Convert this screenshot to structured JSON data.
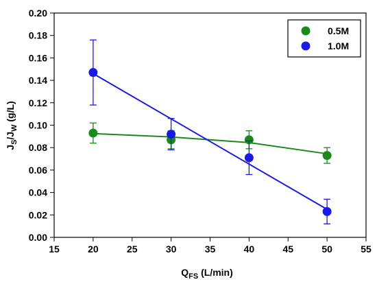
{
  "chart_data": {
    "type": "scatter",
    "xlabel": {
      "main": "Q",
      "sub": "FS",
      "rest": " (L/min)"
    },
    "ylabel": {
      "j1": "J",
      "s1": "S",
      "slash": "/J",
      "s2": "W",
      "rest": " (g/L)"
    },
    "xlim": [
      15,
      55
    ],
    "ylim": [
      0,
      0.2
    ],
    "xticks": [
      "15",
      "20",
      "25",
      "30",
      "35",
      "40",
      "45",
      "50",
      "55"
    ],
    "yticks": [
      "0.00",
      "0.02",
      "0.04",
      "0.06",
      "0.08",
      "0.10",
      "0.12",
      "0.14",
      "0.16",
      "0.18",
      "0.20"
    ],
    "grid": false,
    "legend_position": "top-right",
    "series": [
      {
        "name": "0.5M",
        "color": "#1a8a1a",
        "x": [
          20,
          30,
          40,
          50
        ],
        "y": [
          0.093,
          0.087,
          0.087,
          0.073
        ],
        "err": [
          0.009,
          0.008,
          0.008,
          0.007
        ],
        "fit": [
          [
            20,
            0.0925
          ],
          [
            30,
            0.0895
          ],
          [
            40,
            0.0845
          ],
          [
            50,
            0.0745
          ]
        ]
      },
      {
        "name": "1.0M",
        "color": "#1a1ae6",
        "x": [
          20,
          30,
          40,
          50
        ],
        "y": [
          0.147,
          0.092,
          0.071,
          0.023
        ],
        "err": [
          0.029,
          0.014,
          0.015,
          0.011
        ],
        "fit": [
          [
            20,
            0.146
          ],
          [
            50,
            0.025
          ]
        ]
      }
    ]
  }
}
